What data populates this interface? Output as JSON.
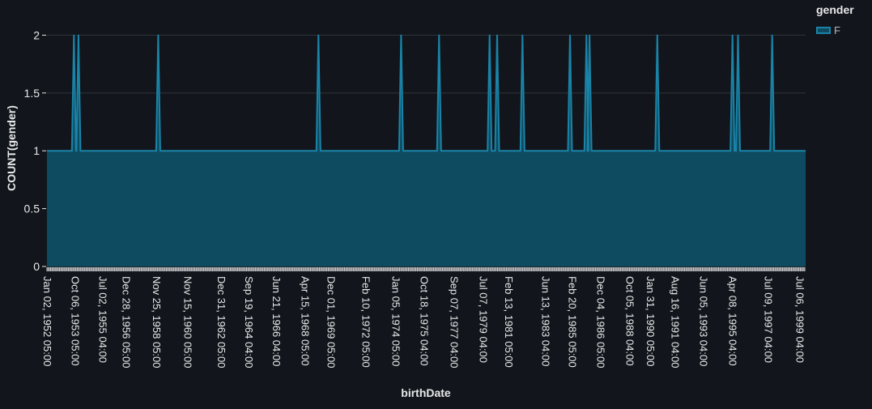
{
  "colors": {
    "background": "#12161c",
    "grid": "#2f353d",
    "series_fill": "#0e4a60",
    "series_line": "#1a84a8",
    "axis_text": "#e8e8e8",
    "rug": "#d9d9d9",
    "legend_text": "#b9b9b9"
  },
  "chart_data": {
    "type": "area",
    "xlabel": "birthDate",
    "ylabel": "COUNT(gender)",
    "ylim": [
      0,
      2.15
    ],
    "yticks": [
      {
        "value": 0,
        "label": "0"
      },
      {
        "value": 0.5,
        "label": "0.5"
      },
      {
        "value": 1,
        "label": "1"
      },
      {
        "value": 1.5,
        "label": "1.5"
      },
      {
        "value": 2,
        "label": "2"
      }
    ],
    "xlim": [
      "1952-01-02",
      "1999-11-20"
    ],
    "xticks": [
      {
        "date": "1952-01-02",
        "label": "Jan 02, 1952 05:00"
      },
      {
        "date": "1953-10-06",
        "label": "Oct 06, 1953 05:00"
      },
      {
        "date": "1955-07-02",
        "label": "Jul 02, 1955 04:00"
      },
      {
        "date": "1956-12-28",
        "label": "Dec 28, 1956 05:00"
      },
      {
        "date": "1958-11-25",
        "label": "Nov 25, 1958 05:00"
      },
      {
        "date": "1960-11-15",
        "label": "Nov 15, 1960 05:00"
      },
      {
        "date": "1962-12-31",
        "label": "Dec 31, 1962 05:00"
      },
      {
        "date": "1964-09-19",
        "label": "Sep 19, 1964 04:00"
      },
      {
        "date": "1966-06-21",
        "label": "Jun 21, 1966 04:00"
      },
      {
        "date": "1968-04-15",
        "label": "Apr 15, 1968 05:00"
      },
      {
        "date": "1969-12-01",
        "label": "Dec 01, 1969 05:00"
      },
      {
        "date": "1972-02-10",
        "label": "Feb 10, 1972 05:00"
      },
      {
        "date": "1974-01-05",
        "label": "Jan 05, 1974 05:00"
      },
      {
        "date": "1975-10-18",
        "label": "Oct 18, 1975 04:00"
      },
      {
        "date": "1977-09-07",
        "label": "Sep 07, 1977 04:00"
      },
      {
        "date": "1979-07-07",
        "label": "Jul 07, 1979 04:00"
      },
      {
        "date": "1981-02-13",
        "label": "Feb 13, 1981 05:00"
      },
      {
        "date": "1983-06-13",
        "label": "Jun 13, 1983 04:00"
      },
      {
        "date": "1985-02-20",
        "label": "Feb 20, 1985 05:00"
      },
      {
        "date": "1986-12-04",
        "label": "Dec 04, 1986 05:00"
      },
      {
        "date": "1988-10-05",
        "label": "Oct 05, 1988 04:00"
      },
      {
        "date": "1990-01-31",
        "label": "Jan 31, 1990 05:00"
      },
      {
        "date": "1991-08-16",
        "label": "Aug 16, 1991 04:00"
      },
      {
        "date": "1993-06-05",
        "label": "Jun 05, 1993 04:00"
      },
      {
        "date": "1995-04-08",
        "label": "Apr 08, 1995 04:00"
      },
      {
        "date": "1997-07-09",
        "label": "Jul 09, 1997 04:00"
      },
      {
        "date": "1999-07-06",
        "label": "Jul 06, 1999 04:00"
      }
    ],
    "baseline_value": 1,
    "peaks": [
      {
        "date": "1953-09-15",
        "value": 2
      },
      {
        "date": "1953-12-28",
        "value": 2
      },
      {
        "date": "1959-01-10",
        "value": 2
      },
      {
        "date": "1969-02-20",
        "value": 2
      },
      {
        "date": "1974-05-10",
        "value": 2
      },
      {
        "date": "1976-10-01",
        "value": 2
      },
      {
        "date": "1979-12-10",
        "value": 2
      },
      {
        "date": "1980-06-01",
        "value": 2
      },
      {
        "date": "1982-01-05",
        "value": 2
      },
      {
        "date": "1985-01-05",
        "value": 2
      },
      {
        "date": "1986-01-20",
        "value": 2
      },
      {
        "date": "1986-04-01",
        "value": 2
      },
      {
        "date": "1990-07-10",
        "value": 2
      },
      {
        "date": "1995-04-10",
        "value": 2
      },
      {
        "date": "1995-08-15",
        "value": 2
      },
      {
        "date": "1997-10-10",
        "value": 2
      }
    ],
    "grid": true,
    "legend": {
      "title": "gender",
      "placement": "top-right",
      "entries": [
        {
          "name": "F",
          "color": "#1a84a8"
        }
      ]
    },
    "series": [
      {
        "name": "F"
      }
    ]
  }
}
